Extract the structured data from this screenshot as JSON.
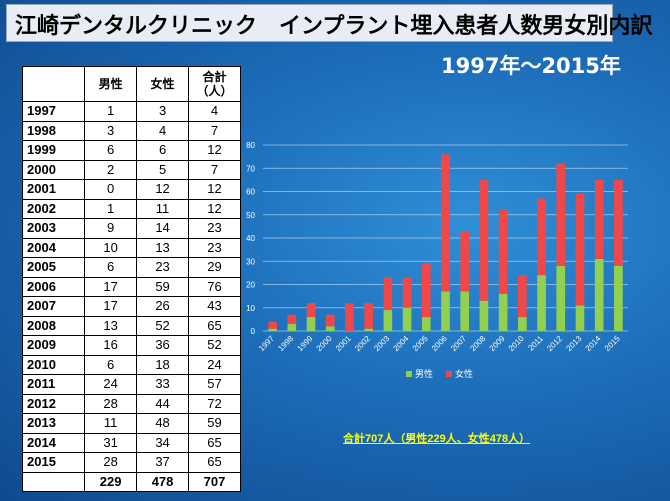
{
  "header": {
    "title": "江崎デンタルクリニック　インプラント埋入患者人数男女別内訳",
    "period": "1997年～2015年"
  },
  "table": {
    "headers": [
      "",
      "男性",
      "女性",
      "合計\n（人）"
    ],
    "rows": [
      [
        "1997",
        "1",
        "3",
        "4"
      ],
      [
        "1998",
        "3",
        "4",
        "7"
      ],
      [
        "1999",
        "6",
        "6",
        "12"
      ],
      [
        "2000",
        "2",
        "5",
        "7"
      ],
      [
        "2001",
        "0",
        "12",
        "12"
      ],
      [
        "2002",
        "1",
        "11",
        "12"
      ],
      [
        "2003",
        "9",
        "14",
        "23"
      ],
      [
        "2004",
        "10",
        "13",
        "23"
      ],
      [
        "2005",
        "6",
        "23",
        "29"
      ],
      [
        "2006",
        "17",
        "59",
        "76"
      ],
      [
        "2007",
        "17",
        "26",
        "43"
      ],
      [
        "2008",
        "13",
        "52",
        "65"
      ],
      [
        "2009",
        "16",
        "36",
        "52"
      ],
      [
        "2010",
        "6",
        "18",
        "24"
      ],
      [
        "2011",
        "24",
        "33",
        "57"
      ],
      [
        "2012",
        "28",
        "44",
        "72"
      ],
      [
        "2013",
        "11",
        "48",
        "59"
      ],
      [
        "2014",
        "31",
        "34",
        "65"
      ],
      [
        "2015",
        "28",
        "37",
        "65"
      ]
    ],
    "totals": [
      "",
      "229",
      "478",
      "707"
    ]
  },
  "chart_data": {
    "type": "bar",
    "stacked": true,
    "categories": [
      "1997",
      "1998",
      "1999",
      "2000",
      "2001",
      "2002",
      "2003",
      "2004",
      "2005",
      "2006",
      "2007",
      "2008",
      "2009",
      "2010",
      "2011",
      "2012",
      "2013",
      "2014",
      "2015"
    ],
    "series": [
      {
        "name": "男性",
        "color": "#92d050",
        "values": [
          1,
          3,
          6,
          2,
          0,
          1,
          9,
          10,
          6,
          17,
          17,
          13,
          16,
          6,
          24,
          28,
          11,
          31,
          28
        ]
      },
      {
        "name": "女性",
        "color": "#f04848",
        "values": [
          3,
          4,
          6,
          5,
          12,
          11,
          14,
          13,
          23,
          59,
          26,
          52,
          36,
          18,
          33,
          44,
          48,
          34,
          37
        ]
      }
    ],
    "ylim": [
      0,
      80
    ],
    "yticks": [
      "0",
      "10",
      "20",
      "30",
      "40",
      "50",
      "60",
      "70",
      "80"
    ],
    "grid": true,
    "legend": "bottom"
  },
  "summary": "合計707人（男性229人、女性478人）"
}
